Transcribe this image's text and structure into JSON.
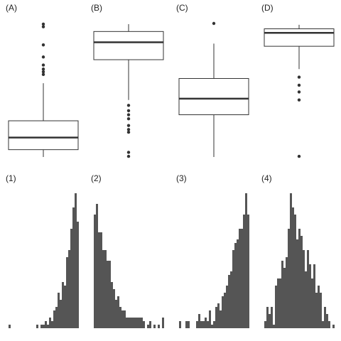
{
  "chart_data": [
    {
      "type": "box",
      "label": "(A)",
      "ylim": [
        0,
        100
      ],
      "whisker_low": 0.5,
      "q1": 6,
      "median": 15,
      "q3": 27.5,
      "whisker_high": 55.5,
      "outliers": [
        99.5,
        97.5,
        84,
        75,
        69,
        66,
        64,
        62
      ],
      "color": "#333333"
    },
    {
      "type": "box",
      "label": "(B)",
      "ylim": [
        0,
        100
      ],
      "whisker_low": 43,
      "q1": 73,
      "median": 86,
      "q3": 94,
      "whisker_high": 99.5,
      "outliers": [
        39,
        35,
        32,
        29,
        24,
        21,
        19,
        4,
        1
      ],
      "color": "#333333"
    },
    {
      "type": "box",
      "label": "(C)",
      "ylim": [
        0,
        100
      ],
      "whisker_low": 0.5,
      "q1": 32,
      "median": 44,
      "q3": 59,
      "whisker_high": 85,
      "outliers": [
        100
      ],
      "color": "#333333"
    },
    {
      "type": "box",
      "label": "(D)",
      "ylim": [
        0,
        100
      ],
      "whisker_low": 66,
      "q1": 83,
      "median": 93,
      "q3": 96,
      "whisker_high": 99,
      "outliers": [
        60,
        54,
        49,
        43,
        1
      ],
      "color": "#333333"
    },
    {
      "type": "histogram",
      "label": "(1)",
      "ylim": [
        0,
        40
      ],
      "color": "#555555",
      "bins": [
        0,
        1,
        2,
        3,
        4,
        5,
        6,
        7,
        8,
        9,
        10,
        11,
        12,
        13,
        14,
        15,
        16,
        17,
        18,
        19,
        20,
        21,
        22,
        23,
        24,
        25,
        26,
        27,
        28,
        29,
        30,
        31,
        32,
        33
      ],
      "counts": [
        1,
        0,
        0,
        0,
        0,
        0,
        0,
        0,
        0,
        0,
        0,
        0,
        0,
        1,
        0,
        1,
        1,
        2,
        1,
        3,
        2,
        5,
        6,
        10,
        8,
        13,
        12,
        20,
        22,
        28,
        34,
        38,
        30
      ]
    },
    {
      "type": "histogram",
      "label": "(2)",
      "ylim": [
        0,
        40
      ],
      "color": "#555555",
      "bins": [
        0,
        1,
        2,
        3,
        4,
        5,
        6,
        7,
        8,
        9,
        10,
        11,
        12,
        13,
        14,
        15,
        16,
        17,
        18,
        19,
        20,
        21,
        22,
        23,
        24,
        25,
        26,
        27,
        28,
        29,
        30,
        31,
        32,
        33
      ],
      "counts": [
        32,
        35,
        27,
        27,
        22,
        22,
        19,
        19,
        13,
        11,
        8,
        9,
        6,
        5,
        5,
        3,
        3,
        3,
        3,
        3,
        3,
        3,
        3,
        2,
        0,
        1,
        2,
        0,
        1,
        0,
        1,
        0,
        3
      ]
    },
    {
      "type": "histogram",
      "label": "(3)",
      "ylim": [
        0,
        40
      ],
      "color": "#555555",
      "bins": [
        0,
        1,
        2,
        3,
        4,
        5,
        6,
        7,
        8,
        9,
        10,
        11,
        12,
        13,
        14,
        15,
        16,
        17,
        18,
        19,
        20,
        21,
        22,
        23,
        24,
        25,
        26,
        27,
        28,
        29,
        30,
        31,
        32,
        33
      ],
      "counts": [
        2,
        0,
        0,
        2,
        2,
        0,
        0,
        0,
        2,
        4,
        2,
        2,
        3,
        2,
        5,
        1,
        2,
        6,
        7,
        5,
        9,
        10,
        12,
        15,
        16,
        22,
        24,
        25,
        28,
        28,
        32,
        38,
        32
      ]
    },
    {
      "type": "histogram",
      "label": "(4)",
      "ylim": [
        0,
        40
      ],
      "color": "#555555",
      "bins": [
        0,
        1,
        2,
        3,
        4,
        5,
        6,
        7,
        8,
        9,
        10,
        11,
        12,
        13,
        14,
        15,
        16,
        17,
        18,
        19,
        20,
        21,
        22,
        23,
        24,
        25,
        26,
        27,
        28,
        29,
        30,
        31,
        32,
        33
      ],
      "counts": [
        2,
        6,
        4,
        6,
        1,
        12,
        14,
        14,
        19,
        17,
        20,
        28,
        38,
        34,
        32,
        25,
        28,
        26,
        22,
        16,
        22,
        18,
        14,
        18,
        10,
        12,
        10,
        2,
        6,
        4,
        2,
        0,
        1
      ]
    }
  ]
}
